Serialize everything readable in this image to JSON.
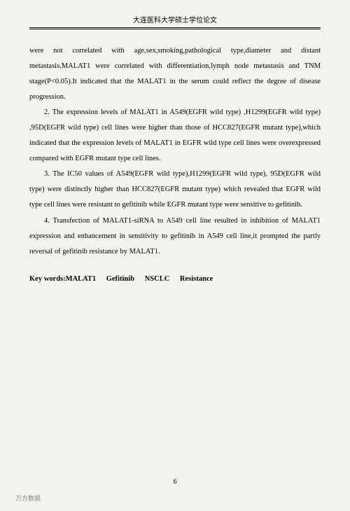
{
  "header": {
    "title": "大连医科大学硕士学位论文"
  },
  "paragraphs": {
    "p1": "were not correlated with age,sex,smoking,pathological type,diameter and distant metastasis.MALAT1 were correlated with differentiation,lymph node metastasis and TNM stage(P<0.05).It indicated that the MALAT1 in the serum could reflect the degree of disease progression.",
    "p2": "2. The expression levels of MALAT1 in A549(EGFR wild type) ,H1299(EGFR wild type) ,95D(EGFR wild type) cell lines were higher than those of HCC827(EGFR mutant type),which indicated that the expression levels of MALAT1 in EGFR wild type cell lines were overexpressed compared with EGFR mutant type cell lines.",
    "p3": "3. The IC50 values of A549(EGFR wild type),H1299(EGFR wild type), 95D(EGFR wild type) were distinctly higher than HCC827(EGFR mutant type) which revealed that EGFR wild type cell lines were resistant to gefitinib while EGFR mutant type were sensitive to gefitinib.",
    "p4": "4. Transfection of MALAT1-siRNA to A549 cell line resulted in inhibition of MALAT1 expression and enhancement in sensitivity to gefitinib in A549 cell line,it prompted the partly reversal of gefitinib resistance by MALAT1."
  },
  "keywords": {
    "label": "Key words:MALAT1",
    "k2": "Gefitinib",
    "k3": "NSCLC",
    "k4": "Resistance"
  },
  "pageNumber": "6",
  "watermark": "万方数据"
}
